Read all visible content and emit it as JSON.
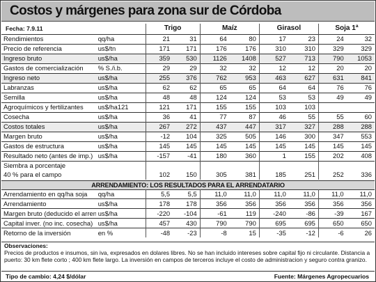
{
  "title": "Costos y márgenes para zona sur de Córdoba",
  "fecha": "Fecha: 7.9.11",
  "crops": [
    "Trigo",
    "Maíz",
    "Girasol",
    "Soja 1ª"
  ],
  "rows": [
    {
      "label": "Rendimientos",
      "unit": "qq/ha",
      "values": [
        "21",
        "31",
        "64",
        "80",
        "17",
        "23",
        "24",
        "32"
      ],
      "shade": false
    },
    {
      "label": "Precio de referencia",
      "unit": "us$/tn",
      "values": [
        "171",
        "171",
        "176",
        "176",
        "310",
        "310",
        "329",
        "329"
      ],
      "shade": false
    },
    {
      "label": "Ingreso bruto",
      "unit": "us$/ha",
      "values": [
        "359",
        "530",
        "1126",
        "1408",
        "527",
        "713",
        "790",
        "1053"
      ],
      "shade": true
    },
    {
      "label": "Gastos de comercialización",
      "unit": "% S./i.b.",
      "values": [
        "29",
        "29",
        "32",
        "32",
        "12",
        "12",
        "20",
        "20"
      ],
      "shade": false
    },
    {
      "label": "Ingreso neto",
      "unit": "us$/ha",
      "values": [
        "255",
        "376",
        "762",
        "953",
        "463",
        "627",
        "631",
        "841"
      ],
      "shade": true
    },
    {
      "label": "Labranzas",
      "unit": "us$/ha",
      "values": [
        "62",
        "62",
        "65",
        "65",
        "64",
        "64",
        "76",
        "76"
      ],
      "shade": false
    },
    {
      "label": "Semilla",
      "unit": "us$/ha",
      "values": [
        "48",
        "48",
        "124",
        "124",
        "53",
        "53",
        "49",
        "49"
      ],
      "shade": false
    },
    {
      "label": "Agroquímicos y fertilizantes",
      "unit": "us$/ha121",
      "values": [
        "121",
        "171",
        "155",
        "155",
        "103",
        "103",
        "",
        ""
      ],
      "shade": false
    },
    {
      "label": "Cosecha",
      "unit": "us$/ha",
      "values": [
        "36",
        "41",
        "77",
        "87",
        "46",
        "55",
        "55",
        "60"
      ],
      "shade": false
    },
    {
      "label": "Costos totales",
      "unit": "us$/ha",
      "values": [
        "267",
        "272",
        "437",
        "447",
        "317",
        "327",
        "288",
        "288"
      ],
      "shade": true
    },
    {
      "label": "Margen bruto",
      "unit": "us$/ha",
      "values": [
        "-12",
        "104",
        "325",
        "505",
        "146",
        "300",
        "347",
        "553"
      ],
      "shade": false
    },
    {
      "label": "Gastos de estructura",
      "unit": "us$/ha",
      "values": [
        "145",
        "145",
        "145",
        "145",
        "145",
        "145",
        "145",
        "145"
      ],
      "shade": false
    },
    {
      "label": "Resultado neto (antes de imp.)",
      "unit": "us$/ha",
      "values": [
        "-157",
        "-41",
        "180",
        "360",
        "1",
        "155",
        "202",
        "408"
      ],
      "shade": false
    }
  ],
  "siembra": {
    "line1": "Siembra a porcentaje",
    "line2": "40 % para el campo",
    "values": [
      "102",
      "150",
      "305",
      "381",
      "185",
      "251",
      "252",
      "336"
    ]
  },
  "section2_title": "ARRENDAMIENTO: LOS RESULTADOS PARA EL ARRENDATARIO",
  "rows2": [
    {
      "label": "Arrendamiento en qq/ha soja",
      "unit": "qq/ha",
      "values": [
        "5,5",
        "5,5",
        "11,0",
        "11,0",
        "11,0",
        "11,0",
        "11,0",
        "11,0"
      ]
    },
    {
      "label": "Arrendamiento",
      "unit": "us$/ha",
      "values": [
        "178",
        "178",
        "356",
        "356",
        "356",
        "356",
        "356",
        "356"
      ]
    },
    {
      "label": "Margen bruto (deducido el arren.)",
      "unit": "us$/ha",
      "values": [
        "-220",
        "-104",
        "-61",
        "119",
        "-240",
        "-86",
        "-39",
        "167"
      ]
    },
    {
      "label": "Capital inver. (no inc. cosecha)",
      "unit": "us$/ha",
      "values": [
        "457",
        "430",
        "790",
        "790",
        "695",
        "695",
        "650",
        "650"
      ]
    },
    {
      "label": "Retorno de la inversión",
      "unit": "en %",
      "values": [
        "-48",
        "-23",
        "-8",
        "15",
        "-35",
        "-12",
        "-6",
        "26"
      ]
    }
  ],
  "notes": {
    "title": "Observaciones:",
    "text": "Precios de productos e insumos, sin iva, expresados en dolares libres. No se han incluido intereses sobre capital fijo ni circulante. Distancia a puerto: 30 km flete corto ; 400 km flete largo. La inversión en campos de terceros incluye el costo de administracion y seguro contra granizo."
  },
  "footer": {
    "left": "Tipo de cambio: 4,24 $/dólar",
    "right": "Fuente: Márgenes Agropecuarios"
  }
}
